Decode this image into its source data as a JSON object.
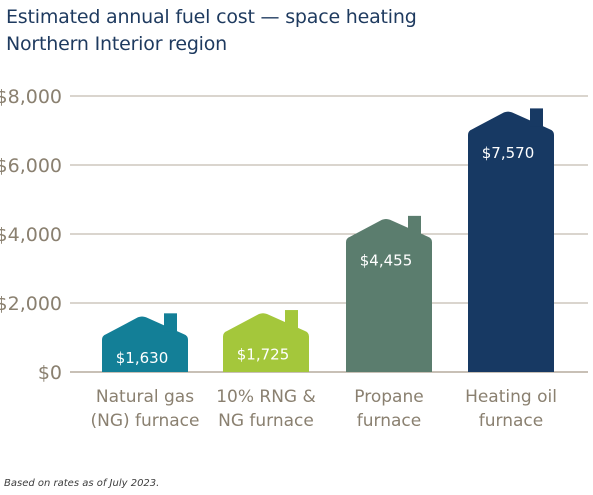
{
  "colors": {
    "title": "#1e3a5f",
    "axis_text": "#8a8070",
    "gridline": "#b5ab9d",
    "category_text": "#8a8070",
    "value_text": "#ffffff",
    "bars": [
      "#137f97",
      "#a4c73b",
      "#5b7d6e",
      "#173963"
    ]
  },
  "chart_data": {
    "type": "bar",
    "title": "Estimated annual fuel cost — space heating",
    "subtitle": "Northern Interior region",
    "xlabel": "",
    "ylabel": "",
    "ylim": [
      0,
      8000
    ],
    "yticks": [
      0,
      2000,
      4000,
      6000,
      8000
    ],
    "ytick_labels": [
      "$0",
      "$2,000",
      "$4,000",
      "$6,000",
      "$8,000"
    ],
    "grid": true,
    "categories": [
      [
        "Natural gas",
        "(NG) furnace"
      ],
      [
        "10% RNG &",
        "NG furnace"
      ],
      [
        "Propane",
        "furnace"
      ],
      [
        "Heating oil",
        "furnace"
      ]
    ],
    "values": [
      1630,
      1725,
      4455,
      7570
    ],
    "value_labels": [
      "$1,630",
      "$1,725",
      "$4,455",
      "$7,570"
    ],
    "footnote": "Based on rates as of July 2023."
  }
}
